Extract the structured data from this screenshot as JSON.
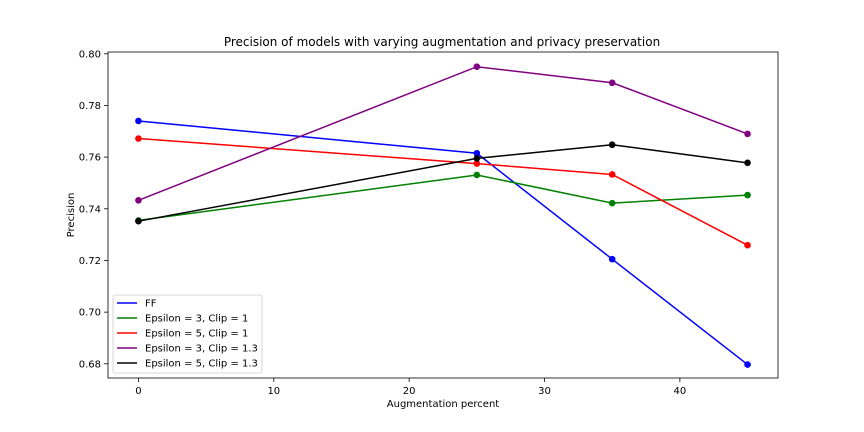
{
  "chart_data": {
    "type": "line",
    "title": "Precision of models with varying augmentation and privacy preservation",
    "xlabel": "Augmentation percent",
    "ylabel": "Precision",
    "xlim": [
      -2.25,
      47.25
    ],
    "ylim": [
      0.6745,
      0.8007
    ],
    "xticks": [
      0,
      10,
      20,
      30,
      40
    ],
    "yticks": [
      0.68,
      0.7,
      0.72,
      0.74,
      0.76,
      0.78,
      0.8
    ],
    "ytick_labels": [
      "0.68",
      "0.70",
      "0.72",
      "0.74",
      "0.76",
      "0.78",
      "0.80"
    ],
    "grid": false,
    "legend_position": "lower-left",
    "x": [
      0,
      25,
      35,
      45
    ],
    "series": [
      {
        "name": "FF",
        "color": "#0000ff",
        "values": [
          0.774,
          0.7615,
          0.7205,
          0.6797
        ]
      },
      {
        "name": "Epsilon = 3, Clip = 1",
        "color": "#008000",
        "values": [
          0.7355,
          0.7531,
          0.7422,
          0.7453
        ]
      },
      {
        "name": "Epsilon = 5, Clip = 1",
        "color": "#ff0000",
        "values": [
          0.7672,
          0.7575,
          0.7533,
          0.7259
        ]
      },
      {
        "name": "Epsilon = 3, Clip = 1.3",
        "color": "#800080",
        "values": [
          0.7433,
          0.795,
          0.7888,
          0.769
        ]
      },
      {
        "name": "Epsilon = 5, Clip = 1.3",
        "color": "#000000",
        "values": [
          0.7352,
          0.7595,
          0.7648,
          0.7578
        ]
      }
    ]
  }
}
